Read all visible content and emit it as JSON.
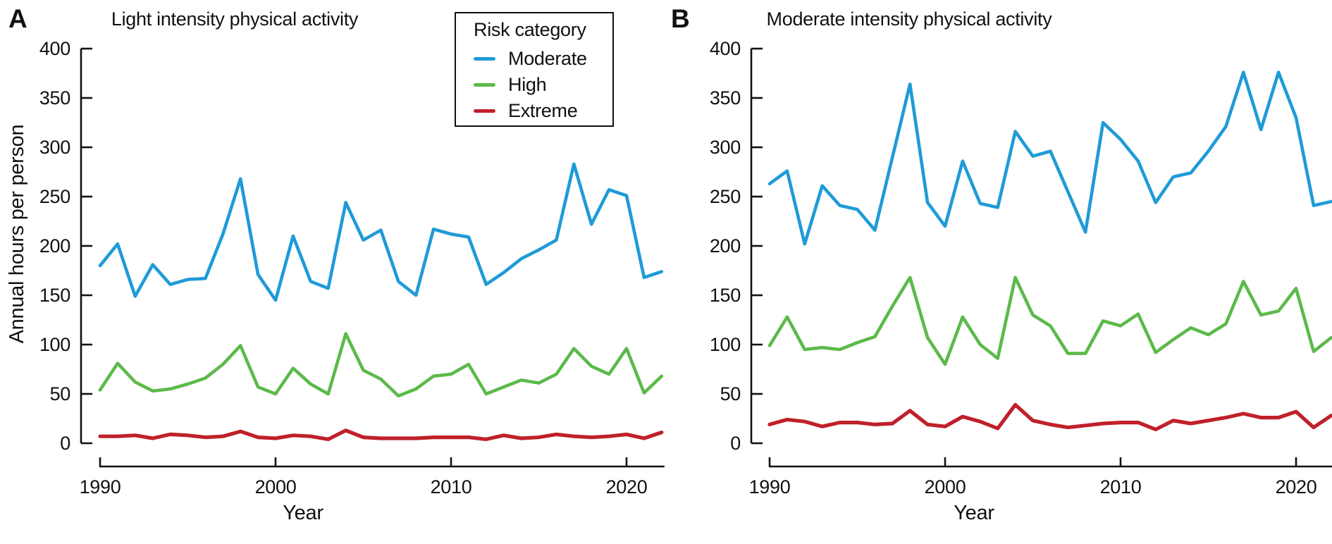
{
  "figure": {
    "ylabel": "Annual hours per person",
    "xlabel": "Year",
    "background": "#ffffff",
    "axis_color": "#111111",
    "panels": [
      {
        "label": "A",
        "title": "Light intensity physical activity"
      },
      {
        "label": "B",
        "title": "Moderate intensity physical activity"
      }
    ],
    "legend": {
      "title": "Risk category",
      "entries": [
        {
          "label": "Moderate",
          "color": "#1f9bd7"
        },
        {
          "label": "High",
          "color": "#5cba4a"
        },
        {
          "label": "Extreme",
          "color": "#c0202a"
        }
      ]
    }
  },
  "chart_data": [
    {
      "type": "line",
      "title": "Light intensity physical activity",
      "xlabel": "Year",
      "ylabel": "Annual hours per person",
      "ylim": [
        0,
        400
      ],
      "yticks": [
        0,
        50,
        100,
        150,
        200,
        250,
        300,
        350,
        400
      ],
      "xticks": [
        1990,
        2000,
        2010,
        2020
      ],
      "grid": false,
      "legend_position": "upper right",
      "x": [
        1990,
        1991,
        1992,
        1993,
        1994,
        1995,
        1996,
        1997,
        1998,
        1999,
        2000,
        2001,
        2002,
        2003,
        2004,
        2005,
        2006,
        2007,
        2008,
        2009,
        2010,
        2011,
        2012,
        2013,
        2014,
        2015,
        2016,
        2017,
        2018,
        2019,
        2020,
        2021,
        2022
      ],
      "series": [
        {
          "name": "Moderate",
          "color": "#1f9bd7",
          "values": [
            180,
            202,
            149,
            181,
            161,
            166,
            167,
            212,
            268,
            171,
            145,
            210,
            164,
            157,
            244,
            206,
            216,
            164,
            150,
            217,
            212,
            209,
            161,
            173,
            187,
            196,
            206,
            283,
            222,
            257,
            251,
            168,
            174
          ]
        },
        {
          "name": "High",
          "color": "#5cba4a",
          "values": [
            54,
            81,
            62,
            53,
            55,
            60,
            66,
            80,
            99,
            57,
            50,
            76,
            60,
            50,
            111,
            74,
            65,
            48,
            55,
            68,
            70,
            80,
            50,
            57,
            64,
            61,
            70,
            96,
            78,
            70,
            96,
            51,
            68
          ]
        },
        {
          "name": "Extreme",
          "color": "#c0202a",
          "values": [
            7,
            7,
            8,
            5,
            9,
            8,
            6,
            7,
            12,
            6,
            5,
            8,
            7,
            4,
            13,
            6,
            5,
            5,
            5,
            6,
            6,
            6,
            4,
            8,
            5,
            6,
            9,
            7,
            6,
            7,
            9,
            5,
            11
          ]
        }
      ]
    },
    {
      "type": "line",
      "title": "Moderate intensity physical activity",
      "xlabel": "Year",
      "ylabel": "Annual hours per person",
      "ylim": [
        0,
        400
      ],
      "yticks": [
        0,
        50,
        100,
        150,
        200,
        250,
        300,
        350,
        400
      ],
      "xticks": [
        1990,
        2000,
        2010,
        2020
      ],
      "grid": false,
      "x": [
        1990,
        1991,
        1992,
        1993,
        1994,
        1995,
        1996,
        1997,
        1998,
        1999,
        2000,
        2001,
        2002,
        2003,
        2004,
        2005,
        2006,
        2007,
        2008,
        2009,
        2010,
        2011,
        2012,
        2013,
        2014,
        2015,
        2016,
        2017,
        2018,
        2019,
        2020,
        2021,
        2022
      ],
      "series": [
        {
          "name": "Moderate",
          "color": "#1f9bd7",
          "values": [
            263,
            276,
            202,
            261,
            241,
            237,
            216,
            290,
            364,
            244,
            220,
            286,
            243,
            239,
            316,
            291,
            296,
            255,
            214,
            325,
            308,
            286,
            244,
            270,
            274,
            296,
            321,
            376,
            318,
            376,
            330,
            241,
            245
          ]
        },
        {
          "name": "High",
          "color": "#5cba4a",
          "values": [
            99,
            128,
            95,
            97,
            95,
            102,
            108,
            139,
            168,
            107,
            80,
            128,
            100,
            86,
            168,
            130,
            119,
            91,
            91,
            124,
            119,
            131,
            92,
            105,
            117,
            110,
            121,
            164,
            130,
            134,
            157,
            93,
            107
          ]
        },
        {
          "name": "Extreme",
          "color": "#c0202a",
          "values": [
            19,
            24,
            22,
            17,
            21,
            21,
            19,
            20,
            33,
            19,
            17,
            27,
            22,
            15,
            39,
            23,
            19,
            16,
            18,
            20,
            21,
            21,
            14,
            23,
            20,
            23,
            26,
            30,
            26,
            26,
            32,
            16,
            28
          ]
        }
      ]
    }
  ]
}
